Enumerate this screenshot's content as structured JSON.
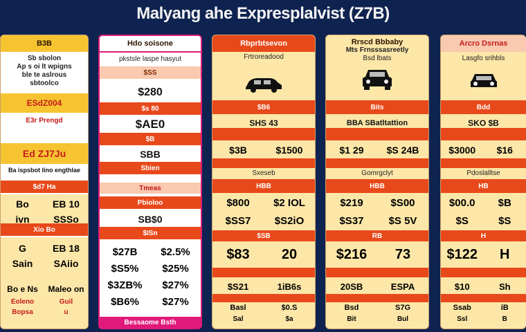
{
  "title": "Malyang ahe Expresplalvist (Z7B)",
  "col1": {
    "head": "B3B",
    "desc": [
      "Sb sbolon",
      "Ap s oi lt wpigns",
      "ble te aslrous",
      "sbtoolco"
    ],
    "price1": "ESdZ004",
    "note": "E3r Prengd",
    "price2": "Ed ZJ7Ju",
    "label": "Ba ispsbot lino engthlae",
    "band1": "$d7 Ha",
    "r1": [
      "Bo",
      "EB 10"
    ],
    "r2": [
      "ivn",
      "SSSo"
    ],
    "band2": "Xio Bo",
    "r3": [
      "G",
      "EB 18"
    ],
    "r4": [
      "Sain",
      "SAiio"
    ],
    "foot1": [
      "Bo e Ns",
      "Maleo on"
    ],
    "foot2": [
      "Eoleno",
      "Guil"
    ],
    "foot3": [
      "Bopsa",
      "u"
    ]
  },
  "col2": {
    "head": "Hdo soisone",
    "sub": "pkstsle laspe hasyut",
    "b1": "$SS",
    "v1": "$280",
    "b2": "$s 80",
    "v2": "$AE0",
    "b3": "$B",
    "v3": "SBB",
    "b4": "Sbien",
    "note": "Tmeas",
    "b5": "Pbioloo",
    "v4": "SB$0",
    "b6": "$ISn",
    "rows": [
      [
        "$27B",
        "$2.5%"
      ],
      [
        "$S5%",
        "$25%"
      ],
      [
        "$3ZB%",
        "$27%"
      ],
      [
        "$B6%",
        "$27%"
      ]
    ],
    "foot": "Bessaome Bsth"
  },
  "col3": {
    "head": "Rbprbtsevon",
    "sub": "Frtroreadood",
    "band": "$B6",
    "v1": "SHS 43",
    "pair": [
      "$3B",
      "$1500"
    ],
    "label": "Sxeseb",
    "band2": "HBB",
    "r1": [
      "$800",
      "$2 IOL"
    ],
    "r2": [
      "$SS7",
      "$S2iO"
    ],
    "band3": "$SB",
    "big": [
      "$83",
      "20"
    ],
    "r3": [
      "$S21",
      "1iB6s"
    ],
    "r4": [
      "Basl",
      "$0.S"
    ],
    "r5": [
      "Sal",
      "$a"
    ]
  },
  "col4": {
    "head": "Rrscd Bbbaby",
    "sub": "Mts Frnsssasreetly",
    "sub2": "Bsd lbats",
    "band": "Bits",
    "v1": "BBA SBatltattion",
    "pair": [
      "$1 29",
      "$S 24B"
    ],
    "label": "Gomrgclyt",
    "band2": "HBB",
    "r1": [
      "$219",
      "$S00"
    ],
    "r2": [
      "$S37",
      "$S 5V"
    ],
    "band3": "RB",
    "big": [
      "$216",
      "73"
    ],
    "r3": [
      "20SB",
      "ESPA"
    ],
    "r4": [
      "Bsd",
      "S7G"
    ],
    "r5": [
      "Bit",
      "Bul"
    ]
  },
  "col5": {
    "head": "Arcro Dsrnas",
    "sub": "Lasgfo srihbls",
    "band": "Bdd",
    "v1": "SKO $B",
    "pair": [
      "$3000",
      "$16"
    ],
    "label": "Pdoslalltse",
    "band2": "HB",
    "r1": [
      "$00.0",
      "$B"
    ],
    "r2": [
      "$S",
      "$S"
    ],
    "band3": "H",
    "big": [
      "$122",
      "H"
    ],
    "r3": [
      "$10",
      "Sh"
    ],
    "r4": [
      "Ssab",
      "iB"
    ],
    "r5": [
      "Ssl",
      "B"
    ]
  },
  "colors": {
    "bg": "#0f2350",
    "orange": "#e8491b",
    "yellow": "#f6c431",
    "cream": "#fde7a8",
    "pink": "#e0197a"
  },
  "icons": [
    "car-icon"
  ]
}
